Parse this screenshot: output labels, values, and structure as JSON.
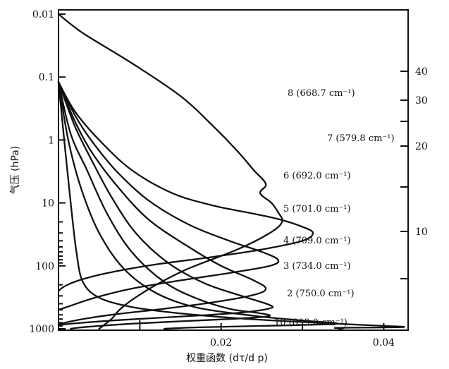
{
  "chart_data": {
    "type": "line",
    "title": "",
    "xlabel": "权重函数 (dτ/d p)",
    "ylabel": "气压 (hPa)",
    "xlim": [
      0,
      0.043
    ],
    "ylim": [
      0.01,
      1000
    ],
    "yscale": "log",
    "x_ticks": [
      {
        "value": 0.02,
        "label": "0.02"
      },
      {
        "value": 0.04,
        "label": "0.04"
      }
    ],
    "y_ticks": [
      {
        "value": 0.01,
        "label": "0.01"
      },
      {
        "value": 0.1,
        "label": "0.1"
      },
      {
        "value": 1,
        "label": "1"
      },
      {
        "value": 10,
        "label": "10"
      },
      {
        "value": 100,
        "label": "100"
      },
      {
        "value": 1000,
        "label": "1000"
      }
    ],
    "right_ticks": [
      {
        "value": 40,
        "label": "40"
      },
      {
        "value": 30,
        "label": "30"
      },
      {
        "value": 20,
        "label": "20"
      },
      {
        "value": 10,
        "label": "10"
      }
    ],
    "series": [
      {
        "name": "8 (668.7 cm⁻¹)",
        "label": "8 (668.7 cm⁻¹)",
        "points": [
          [
            0.0,
            0.01
          ],
          [
            0.003,
            0.02
          ],
          [
            0.009,
            0.06
          ],
          [
            0.015,
            0.2
          ],
          [
            0.019,
            0.6
          ],
          [
            0.022,
            1.5
          ],
          [
            0.024,
            3
          ],
          [
            0.0255,
            5
          ],
          [
            0.0248,
            7
          ],
          [
            0.0262,
            10
          ],
          [
            0.027,
            14
          ],
          [
            0.0275,
            20
          ],
          [
            0.026,
            30
          ],
          [
            0.022,
            55
          ],
          [
            0.016,
            110
          ],
          [
            0.012,
            200
          ],
          [
            0.009,
            350
          ],
          [
            0.0075,
            500
          ],
          [
            0.0065,
            700
          ],
          [
            0.005,
            1000
          ]
        ]
      },
      {
        "name": "7 (579.8 cm⁻¹)",
        "label": "7 (579.8 cm⁻¹)",
        "points": [
          [
            0.0,
            0.12
          ],
          [
            0.002,
            0.35
          ],
          [
            0.005,
            1
          ],
          [
            0.009,
            3
          ],
          [
            0.014,
            7
          ],
          [
            0.019,
            11
          ],
          [
            0.023,
            14
          ],
          [
            0.027,
            18
          ],
          [
            0.03,
            24
          ],
          [
            0.0313,
            30
          ],
          [
            0.03,
            40
          ],
          [
            0.025,
            55
          ],
          [
            0.019,
            72
          ],
          [
            0.012,
            95
          ],
          [
            0.006,
            130
          ],
          [
            0.0025,
            170
          ],
          [
            0.0008,
            210
          ],
          [
            0.0,
            250
          ]
        ]
      },
      {
        "name": "6 (692.0 cm⁻¹)",
        "label": "6 (692.0 cm⁻¹)",
        "points": [
          [
            0.0,
            0.12
          ],
          [
            0.002,
            0.4
          ],
          [
            0.004,
            1
          ],
          [
            0.007,
            3
          ],
          [
            0.011,
            9
          ],
          [
            0.016,
            22
          ],
          [
            0.021,
            40
          ],
          [
            0.025,
            60
          ],
          [
            0.027,
            80
          ],
          [
            0.026,
            100
          ],
          [
            0.021,
            130
          ],
          [
            0.015,
            170
          ],
          [
            0.009,
            230
          ],
          [
            0.0045,
            320
          ],
          [
            0.0015,
            430
          ],
          [
            0.0,
            500
          ]
        ]
      },
      {
        "name": "5 (701.0 cm⁻¹)",
        "label": "5 (701.0 cm⁻¹)",
        "points": [
          [
            0.0,
            0.12
          ],
          [
            0.002,
            0.5
          ],
          [
            0.004,
            1.5
          ],
          [
            0.007,
            5
          ],
          [
            0.011,
            18
          ],
          [
            0.016,
            50
          ],
          [
            0.02,
            100
          ],
          [
            0.024,
            170
          ],
          [
            0.0255,
            230
          ],
          [
            0.024,
            290
          ],
          [
            0.019,
            380
          ],
          [
            0.013,
            480
          ],
          [
            0.0065,
            600
          ],
          [
            0.0025,
            720
          ],
          [
            0.0,
            850
          ]
        ]
      },
      {
        "name": "4 (709.0 cm⁻¹)",
        "label": "4 (709.0 cm⁻¹)",
        "points": [
          [
            0.0,
            0.12
          ],
          [
            0.002,
            0.6
          ],
          [
            0.004,
            2
          ],
          [
            0.0065,
            8
          ],
          [
            0.0095,
            30
          ],
          [
            0.0135,
            90
          ],
          [
            0.018,
            190
          ],
          [
            0.0225,
            300
          ],
          [
            0.026,
            420
          ],
          [
            0.0258,
            480
          ],
          [
            0.022,
            560
          ],
          [
            0.015,
            640
          ],
          [
            0.008,
            720
          ],
          [
            0.003,
            800
          ],
          [
            0.0,
            870
          ]
        ]
      },
      {
        "name": "3 (734.0 cm⁻¹)",
        "label": "3 (734.0 cm⁻¹)",
        "points": [
          [
            0.0,
            0.12
          ],
          [
            0.0015,
            0.8
          ],
          [
            0.0035,
            3
          ],
          [
            0.006,
            15
          ],
          [
            0.009,
            60
          ],
          [
            0.013,
            180
          ],
          [
            0.017,
            330
          ],
          [
            0.021,
            480
          ],
          [
            0.0245,
            560
          ],
          [
            0.026,
            610
          ],
          [
            0.025,
            650
          ],
          [
            0.021,
            700
          ],
          [
            0.015,
            760
          ],
          [
            0.009,
            830
          ],
          [
            0.005,
            900
          ],
          [
            0.0025,
            960
          ],
          [
            0.0015,
            1000
          ]
        ]
      },
      {
        "name": "2 (750.0 cm⁻¹)",
        "label": "2 (750.0 cm⁻¹)",
        "points": [
          [
            0.0,
            0.12
          ],
          [
            0.0012,
            1
          ],
          [
            0.0028,
            6
          ],
          [
            0.005,
            30
          ],
          [
            0.008,
            110
          ],
          [
            0.012,
            270
          ],
          [
            0.017,
            460
          ],
          [
            0.024,
            620
          ],
          [
            0.03,
            740
          ],
          [
            0.034,
            810
          ],
          [
            0.033,
            850
          ],
          [
            0.025,
            900
          ],
          [
            0.017,
            950
          ],
          [
            0.013,
            1000
          ]
        ]
      },
      {
        "name": "10 (899.0 cm⁻¹)",
        "label": "10 (899.0 cm⁻¹)",
        "points": [
          [
            0.0,
            0.12
          ],
          [
            0.0007,
            1
          ],
          [
            0.0015,
            10
          ],
          [
            0.0022,
            60
          ],
          [
            0.003,
            180
          ],
          [
            0.005,
            320
          ],
          [
            0.009,
            450
          ],
          [
            0.015,
            570
          ],
          [
            0.022,
            680
          ],
          [
            0.029,
            770
          ],
          [
            0.035,
            840
          ],
          [
            0.04,
            900
          ],
          [
            0.0425,
            930
          ],
          [
            0.041,
            950
          ],
          [
            0.036,
            960
          ],
          [
            0.034,
            970
          ],
          [
            0.035,
            980
          ],
          [
            0.0345,
            1000
          ]
        ]
      }
    ]
  }
}
